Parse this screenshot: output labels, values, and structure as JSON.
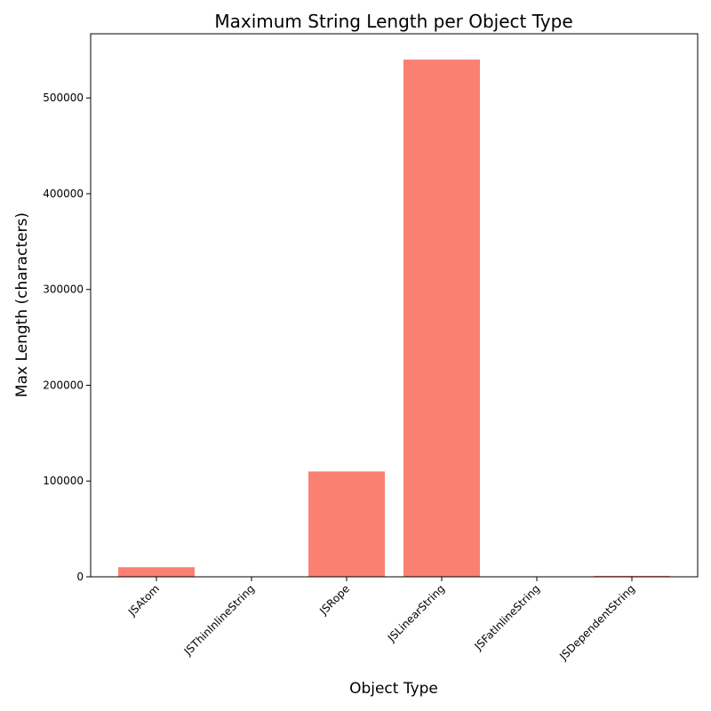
{
  "chart_data": {
    "type": "bar",
    "title": "Maximum String Length per Object Type",
    "xlabel": "Object Type",
    "ylabel": "Max Length (characters)",
    "categories": [
      "JSAtom",
      "JSThinInlineString",
      "JSRope",
      "JSLinearString",
      "JSFatInlineString",
      "JSDependentString"
    ],
    "values": [
      10000,
      0,
      110000,
      540000,
      0,
      1000
    ],
    "ylim": [
      0,
      567000
    ],
    "yticks": [
      0,
      100000,
      200000,
      300000,
      400000,
      500000
    ],
    "grid": false,
    "legend": "none",
    "colors": {
      "bar": "#fa8072"
    }
  }
}
